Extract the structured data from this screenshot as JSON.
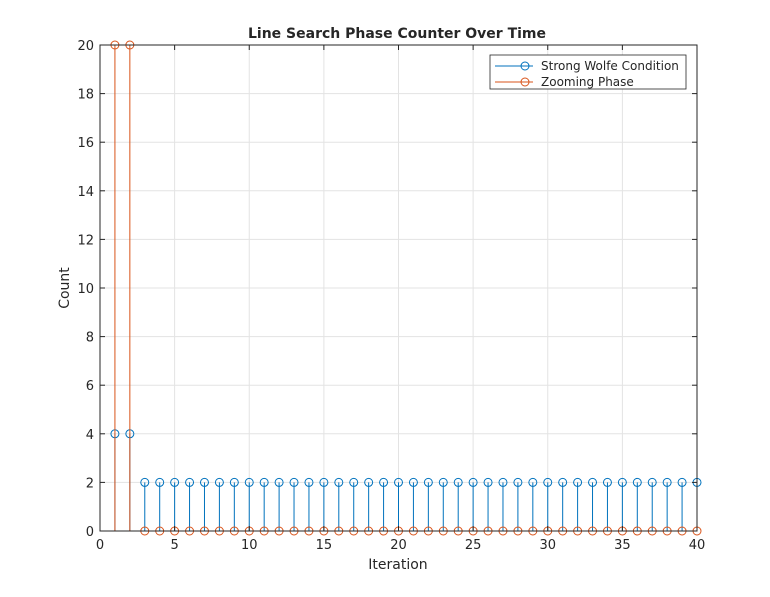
{
  "chart_data": {
    "type": "stem",
    "title": "Line Search Phase Counter Over Time",
    "xlabel": "Iteration",
    "ylabel": "Count",
    "xlim": [
      0,
      40
    ],
    "ylim": [
      0,
      20
    ],
    "xticks": [
      0,
      5,
      10,
      15,
      20,
      25,
      30,
      35,
      40
    ],
    "yticks": [
      0,
      2,
      4,
      6,
      8,
      10,
      12,
      14,
      16,
      18,
      20
    ],
    "grid": true,
    "legend_position": "top-right",
    "x": [
      1,
      2,
      3,
      4,
      5,
      6,
      7,
      8,
      9,
      10,
      11,
      12,
      13,
      14,
      15,
      16,
      17,
      18,
      19,
      20,
      21,
      22,
      23,
      24,
      25,
      26,
      27,
      28,
      29,
      30,
      31,
      32,
      33,
      34,
      35,
      36,
      37,
      38,
      39,
      40
    ],
    "series": [
      {
        "name": "Strong Wolfe Condition",
        "color": "#0072BD",
        "values": [
          4,
          4,
          2,
          2,
          2,
          2,
          2,
          2,
          2,
          2,
          2,
          2,
          2,
          2,
          2,
          2,
          2,
          2,
          2,
          2,
          2,
          2,
          2,
          2,
          2,
          2,
          2,
          2,
          2,
          2,
          2,
          2,
          2,
          2,
          2,
          2,
          2,
          2,
          2,
          2
        ]
      },
      {
        "name": "Zooming Phase",
        "color": "#D95319",
        "values": [
          20,
          20,
          0,
          0,
          0,
          0,
          0,
          0,
          0,
          0,
          0,
          0,
          0,
          0,
          0,
          0,
          0,
          0,
          0,
          0,
          0,
          0,
          0,
          0,
          0,
          0,
          0,
          0,
          0,
          0,
          0,
          0,
          0,
          0,
          0,
          0,
          0,
          0,
          0,
          0
        ]
      }
    ]
  }
}
